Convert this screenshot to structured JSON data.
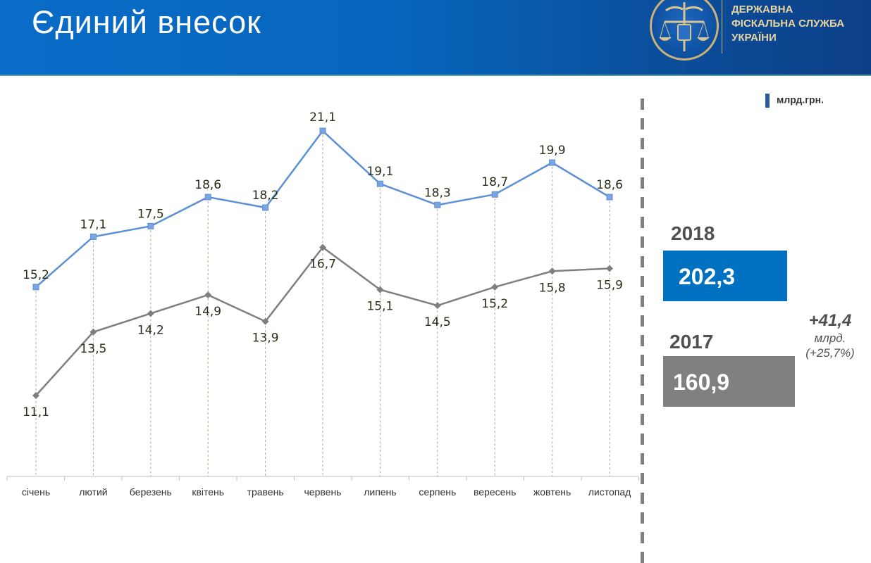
{
  "header": {
    "title": "Єдиний внесок",
    "logo_lines": [
      "ДЕРЖАВНА",
      "ФІСКАЛЬНА СЛУЖБА",
      "УКРАЇНИ"
    ],
    "logo_icon": "scales-trident-emblem-icon"
  },
  "unit_label": "млрд.грн.",
  "summary": {
    "year_2018": {
      "label": "2018",
      "value": "202,3",
      "color": "#0070c0"
    },
    "year_2017": {
      "label": "2017",
      "value": "160,9",
      "color": "#808080"
    },
    "delta_value": "+41,4",
    "delta_unit": "млрд.",
    "delta_percent": "(+25,7%)"
  },
  "colors": {
    "series_2018": "#5b8fd6",
    "series_2018_marker": "#7aa5e0",
    "series_2017": "#7f7f7f",
    "label_text": "#243018",
    "dropline": "#b5a98a"
  },
  "chart_data": {
    "type": "line",
    "title": "Єдиний внесок",
    "xlabel": "",
    "ylabel": "млрд.грн.",
    "categories": [
      "січень",
      "лютий",
      "березень",
      "квітень",
      "травень",
      "червень",
      "липень",
      "серпень",
      "вересень",
      "жовтень",
      "листопад"
    ],
    "series": [
      {
        "name": "2018",
        "values": [
          15.2,
          17.1,
          17.5,
          18.6,
          18.2,
          21.1,
          19.1,
          18.3,
          18.7,
          19.9,
          18.6
        ],
        "labels": [
          "15,2",
          "17,1",
          "17,5",
          "18,6",
          "18,2",
          "21,1",
          "19,1",
          "18,3",
          "18,7",
          "19,9",
          "18,6"
        ],
        "marker": "square"
      },
      {
        "name": "2017",
        "values": [
          11.1,
          13.5,
          14.2,
          14.9,
          13.9,
          16.7,
          15.1,
          14.5,
          15.2,
          15.8,
          15.9
        ],
        "labels": [
          "11,1",
          "13,5",
          "14,2",
          "14,9",
          "13,9",
          "16,7",
          "15,1",
          "14,5",
          "15,2",
          "15,8",
          "15,9"
        ],
        "marker": "diamond"
      }
    ],
    "grid": false,
    "droplines": true,
    "legend": "none",
    "totals": {
      "2018": 202.3,
      "2017": 160.9
    }
  }
}
